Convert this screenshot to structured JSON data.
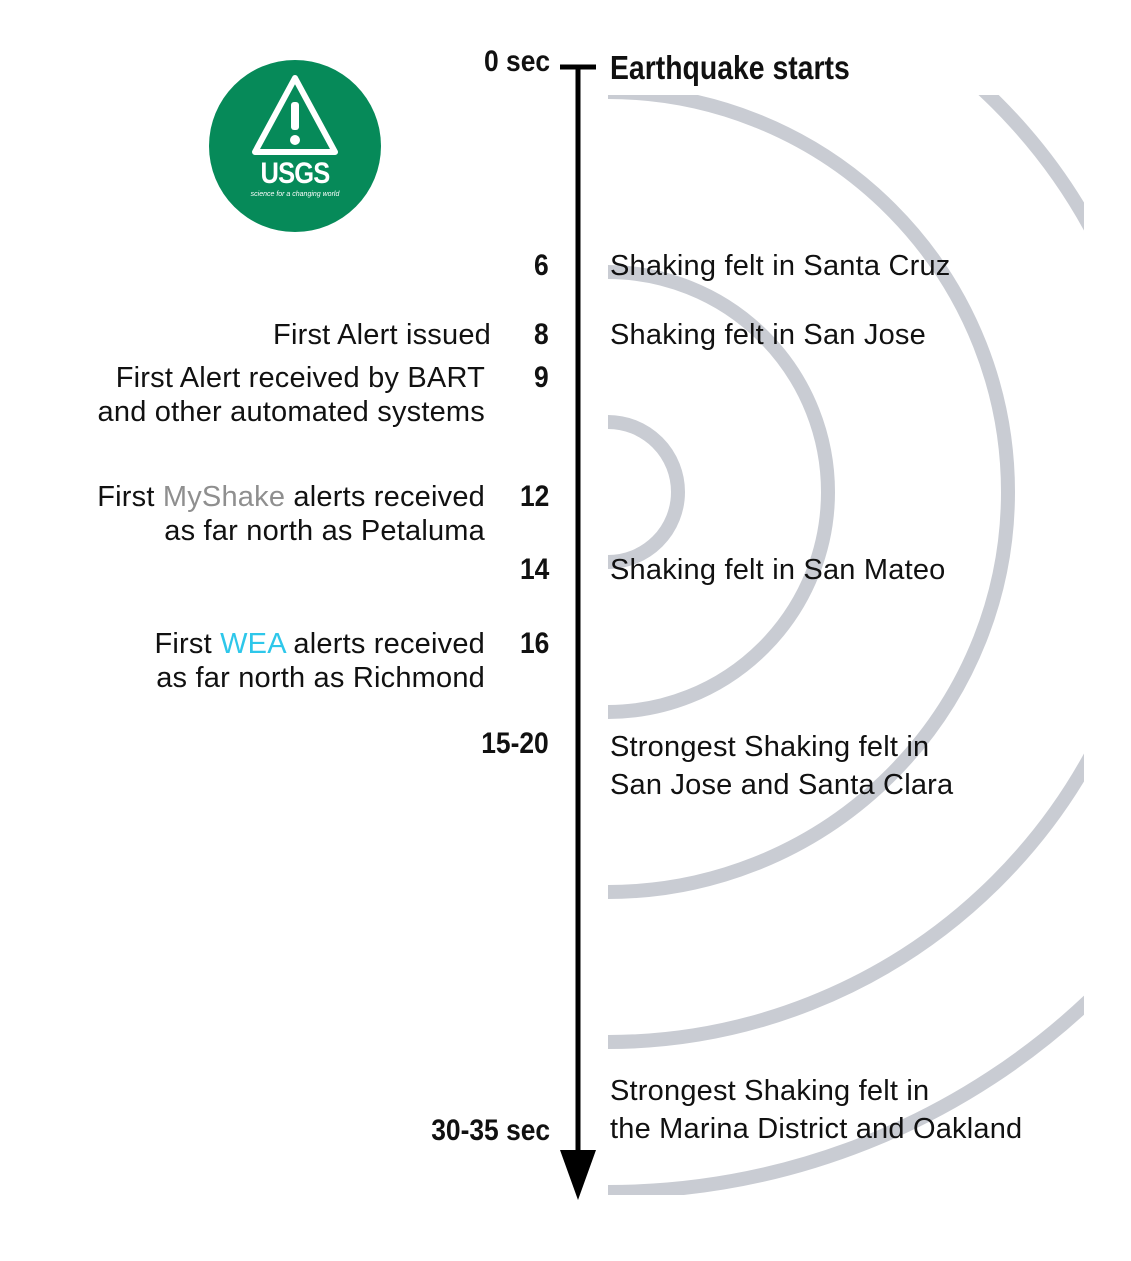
{
  "logo": {
    "brand": "USGS",
    "tagline": "science for a changing world",
    "icon": "warning-triangle-icon",
    "color": "#068a59"
  },
  "timeline": {
    "start_label": "0 sec",
    "start_event": "Earthquake starts",
    "end_label": "30-35 sec",
    "end_event_line1": "Strongest Shaking felt in",
    "end_event_line2": "the Marina District and Oakland"
  },
  "events": {
    "t6": {
      "time": "6",
      "right": "Shaking felt in Santa Cruz"
    },
    "t8": {
      "time": "8",
      "left": "First Alert issued",
      "right": "Shaking felt in San Jose"
    },
    "t9": {
      "time": "9",
      "left_line1": "First Alert received by BART",
      "left_line2": "and other automated systems"
    },
    "t12": {
      "time": "12",
      "left_pre": "First ",
      "left_highlight": "MyShake",
      "left_post": " alerts received",
      "left_line2": "as far north as Petaluma"
    },
    "t14": {
      "time": "14",
      "right": "Shaking felt in San Mateo"
    },
    "t16": {
      "time": "16",
      "left_pre": "First ",
      "left_highlight": "WEA",
      "left_post": " alerts received",
      "left_line2": "as far north as Richmond"
    },
    "t15_20": {
      "time": "15-20",
      "right_line1": "Strongest Shaking felt in",
      "right_line2": "San Jose and Santa Clara"
    }
  },
  "colors": {
    "myshake": "#8f8f8f",
    "wea": "#2ec7ea",
    "waves": "#c9ccd3"
  }
}
